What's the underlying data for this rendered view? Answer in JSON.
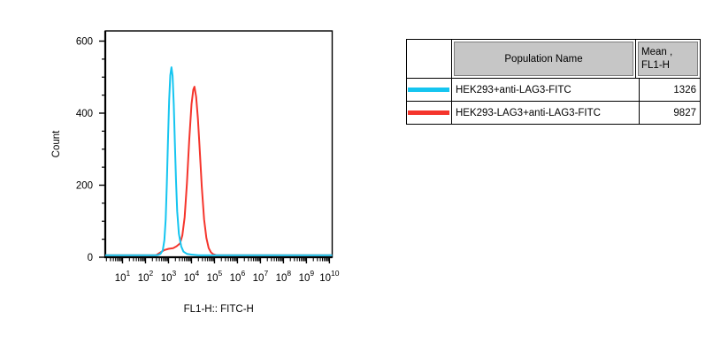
{
  "chart_data": {
    "type": "line",
    "subtype": "flow-cytometry-histogram-overlay",
    "title": "",
    "xlabel": "FL1-H:: FITC-H",
    "ylabel": "Count",
    "x_scale": "log",
    "x_tick_exponents": [
      1,
      2,
      3,
      4,
      5,
      6,
      7,
      8,
      9,
      10
    ],
    "x_tick_base": "10",
    "y_ticks": [
      0,
      200,
      400,
      600
    ],
    "y_minor_step": 50,
    "ylim": [
      0,
      627
    ],
    "legend_position": "external-table",
    "grid": false,
    "series": [
      {
        "name": "HEK293+anti-LAG3-FITC",
        "color": "#15c5f0",
        "mean_fl1h": 1326,
        "peak_count": 522,
        "points": [
          [
            0.25,
            0
          ],
          [
            2.45,
            0
          ],
          [
            2.55,
            1
          ],
          [
            2.65,
            4
          ],
          [
            2.75,
            14
          ],
          [
            2.82,
            42
          ],
          [
            2.88,
            100
          ],
          [
            2.93,
            200
          ],
          [
            2.98,
            320
          ],
          [
            3.03,
            430
          ],
          [
            3.08,
            500
          ],
          [
            3.13,
            522
          ],
          [
            3.18,
            498
          ],
          [
            3.23,
            420
          ],
          [
            3.28,
            310
          ],
          [
            3.33,
            205
          ],
          [
            3.38,
            122
          ],
          [
            3.45,
            60
          ],
          [
            3.55,
            25
          ],
          [
            3.65,
            10
          ],
          [
            3.8,
            4
          ],
          [
            4.0,
            2
          ],
          [
            4.3,
            0
          ],
          [
            10.12,
            0
          ]
        ]
      },
      {
        "name": "HEK293-LAG3+anti-LAG3-FITC",
        "color": "#f5352c",
        "mean_fl1h": 9827,
        "peak_count": 468,
        "points": [
          [
            0.25,
            0
          ],
          [
            2.45,
            0
          ],
          [
            2.6,
            6
          ],
          [
            2.8,
            14
          ],
          [
            3.0,
            18
          ],
          [
            3.2,
            20
          ],
          [
            3.35,
            25
          ],
          [
            3.5,
            33
          ],
          [
            3.6,
            55
          ],
          [
            3.7,
            105
          ],
          [
            3.8,
            200
          ],
          [
            3.9,
            320
          ],
          [
            4.0,
            420
          ],
          [
            4.08,
            460
          ],
          [
            4.13,
            468
          ],
          [
            4.2,
            440
          ],
          [
            4.28,
            380
          ],
          [
            4.35,
            300
          ],
          [
            4.45,
            190
          ],
          [
            4.55,
            100
          ],
          [
            4.65,
            48
          ],
          [
            4.75,
            20
          ],
          [
            4.85,
            8
          ],
          [
            4.95,
            3
          ],
          [
            5.1,
            0
          ],
          [
            10.12,
            0
          ]
        ]
      }
    ]
  },
  "table": {
    "header": {
      "swatch": "",
      "population": "Population Name",
      "mean_line1": "Mean ,",
      "mean_line2": "FL1-H"
    },
    "rows": [
      {
        "swatch_color": "#15c5f0",
        "population": "HEK293+anti-LAG3-FITC",
        "mean": "1326"
      },
      {
        "swatch_color": "#f5352c",
        "population": "HEK293-LAG3+anti-LAG3-FITC",
        "mean": "9827"
      }
    ]
  },
  "colors": {
    "cyan_series": "#15c5f0",
    "red_series": "#f5352c",
    "table_header_bg": "#c6c6c6",
    "table_header_border": "#7e7e7e",
    "axis": "#000000"
  }
}
